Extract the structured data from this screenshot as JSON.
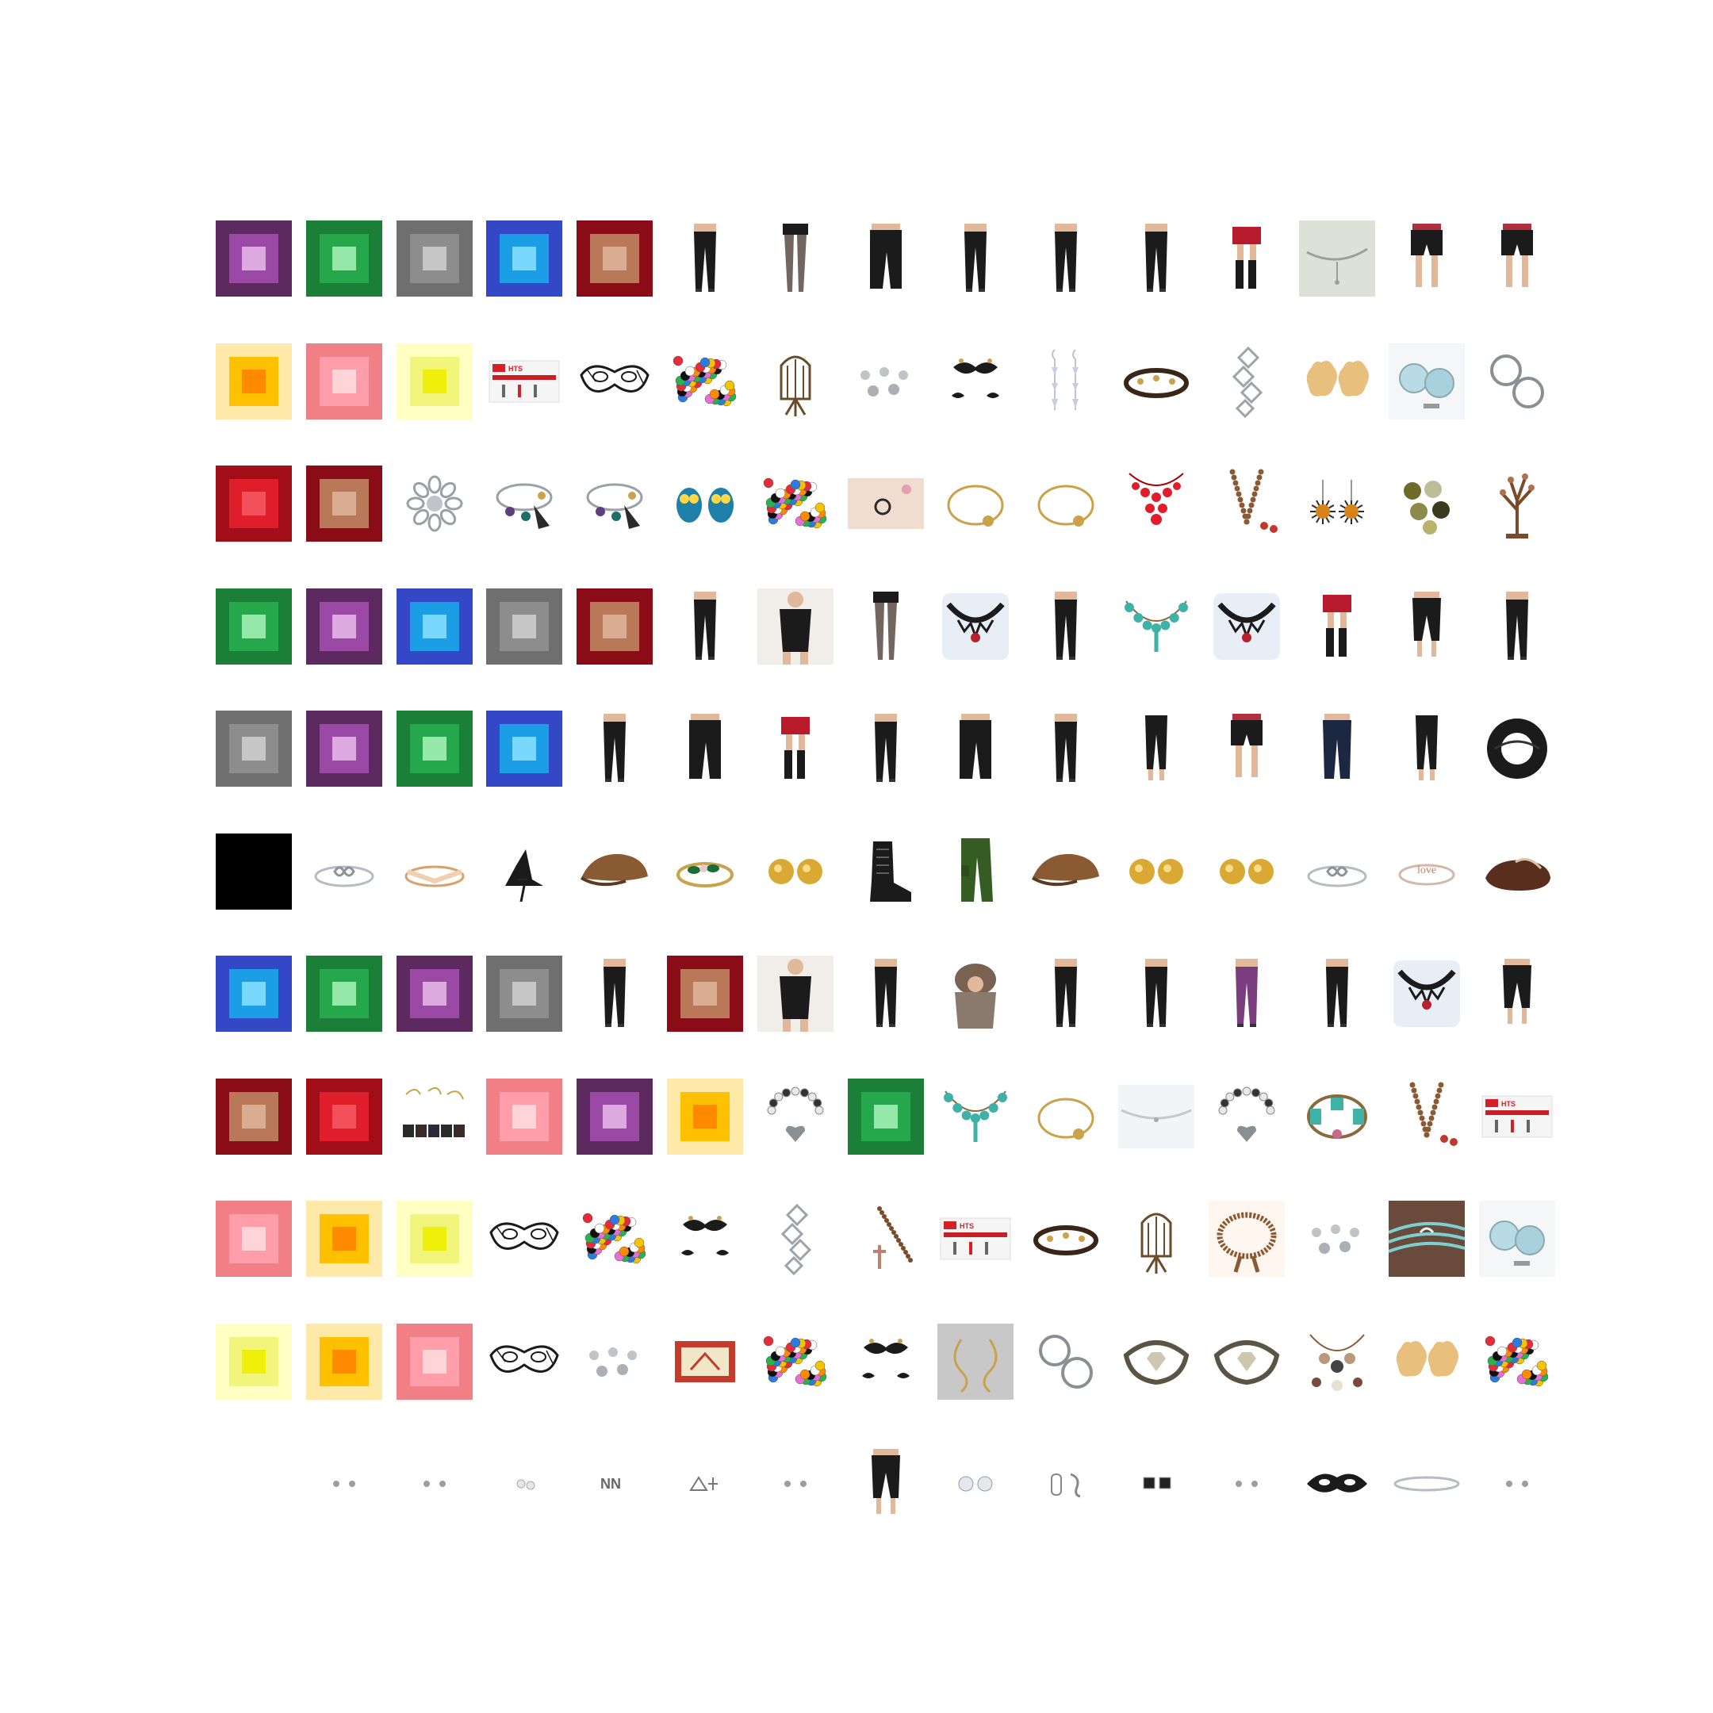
{
  "grid": {
    "rows": [
      [
        "swatch:#5d2a60:#9a4aa5:#dcaadf",
        "swatch:#1b7f38:#24a84b:#95e8a7",
        "swatch:#6f6f6f:#8d8d8d:#c6c6c6",
        "swatch:#3448c7:#1b9ee6:#7ad8ff",
        "swatch:#8a0c16:#b97959:#d9ad92",
        "leggings-icon",
        "stockings-icon",
        "pants-icon",
        "leggings-icon",
        "leggings-icon",
        "leggings-icon",
        "knee-socks-icon",
        "anklet-icon",
        "shorts-icon",
        "shorts-icon"
      ],
      [
        "swatch:#ffe9a8:#ffc000:#ff8a00",
        "swatch:#f07f86:#ff9eaa:#ffd4d6",
        "swatch:#ffffc4:#f2f57c:#f0ee0b",
        "watch-kit-icon",
        "lace-mask-icon",
        "beads-icon",
        "bird-cage-icon",
        "studs-icon",
        "mustache-icon",
        "drop-earrings-icon",
        "leather-bracelet-icon",
        "crystal-ear-cuff-icon",
        "pasties-icon",
        "gem-studs-icon",
        "hoop-earrings-icon"
      ],
      [
        "swatch:#a20e17:#e01d2b:#f2505a",
        "swatch:#8a0c16:#b97959:#d9ad92",
        "brooch-icon",
        "charm-bracelet-icon",
        "charm-bracelet-icon",
        "owl-earrings-icon",
        "beads-icon",
        "ring-photo-icon",
        "bangle-icon",
        "bangle-icon",
        "bib-necklace-icon",
        "bead-necklace-icon",
        "sun-earrings-icon",
        "buttons-icon",
        "jewelry-tree-icon"
      ],
      [
        "swatch:#1b7f38:#24a84b:#95e8a7",
        "swatch:#5d2a60:#9a4aa5:#dcaadf",
        "swatch:#3448c7:#1b9ee6:#7ad8ff",
        "swatch:#6f6f6f:#8d8d8d:#c6c6c6",
        "swatch:#8a0c16:#b97959:#d9ad92",
        "leggings-icon",
        "bodysuit-icon",
        "stockings-icon",
        "lace-choker-icon",
        "leggings-icon",
        "turquoise-necklace-icon",
        "lace-choker-icon",
        "knee-socks-icon",
        "capri-icon",
        "leggings-icon"
      ],
      [
        "swatch:#6f6f6f:#8d8d8d:#c6c6c6",
        "swatch:#5d2a60:#9a4aa5:#dcaadf",
        "swatch:#1b7f38:#24a84b:#95e8a7",
        "swatch:#3448c7:#1b9ee6:#7ad8ff",
        "leggings-icon",
        "pants-icon",
        "knee-socks-icon",
        "leggings-icon",
        "pants-icon",
        "leggings-icon",
        "footless-tights-icon",
        "shorts-icon",
        "jeans-icon",
        "footless-tights-icon",
        "infinity-scarf-icon"
      ],
      [
        "black-square",
        "infinity-ring-icon",
        "chevron-ring-icon",
        "witch-hat-icon",
        "flat-cap-icon",
        "leaf-ring-icon",
        "ball-studs-icon",
        "lace-boot-icon",
        "cargo-pants-icon",
        "flat-cap-icon",
        "ball-studs-icon",
        "ball-studs-icon",
        "infinity-ring-icon",
        "love-ring-icon",
        "moccasin-icon"
      ],
      [
        "swatch:#3448c7:#1b9ee6:#7ad8ff",
        "swatch:#1b7f38:#24a84b:#95e8a7",
        "swatch:#5d2a60:#9a4aa5:#dcaadf",
        "swatch:#6f6f6f:#8d8d8d:#c6c6c6",
        "leggings-icon",
        "swatch:#8a0c16:#b97959:#d9ad92",
        "bodysuit-icon",
        "leggings-icon",
        "fur-hat-icon",
        "leggings-icon",
        "leggings-icon",
        "purple-leggings-icon",
        "leggings-icon",
        "lace-choker-icon",
        "capri-icon"
      ],
      [
        "swatch:#8a0c16:#b97959:#d9ad92",
        "swatch:#a20e17:#e01d2b:#f2505a",
        "ear-cuff-set-icon",
        "swatch:#f07f86:#ff9eaa:#ffd4d6",
        "swatch:#5d2a60:#9a4aa5:#dcaadf",
        "swatch:#ffe9a8:#ffc000:#ff8a00",
        "heart-bracelet-icon",
        "swatch:#1b7f38:#24a84b:#95e8a7",
        "turquoise-necklace-icon",
        "bangle-icon",
        "chain-anklet-icon",
        "heart-bracelet-icon",
        "turquoise-bracelet-icon",
        "bead-necklace-icon",
        "watch-kit-icon"
      ],
      [
        "swatch:#f07f86:#ff9eaa:#ffd4d6",
        "swatch:#ffe9a8:#ffc000:#ff8a00",
        "swatch:#ffffc4:#f2f57c:#f0ee0b",
        "lace-mask-icon",
        "beads-icon",
        "mustache-icon",
        "crystal-ear-cuff-icon",
        "rosary-icon",
        "watch-kit-icon",
        "leather-bracelet-icon",
        "bird-cage-icon",
        "wood-beads-icon",
        "studs-icon",
        "wrap-bracelet-icon",
        "gem-studs-icon"
      ],
      [
        "swatch:#ffffc4:#f2f57c:#f0ee0b",
        "swatch:#ffe9a8:#ffc000:#ff8a00",
        "swatch:#f07f86:#ff9eaa:#ffd4d6",
        "lace-mask-icon",
        "studs-icon",
        "matchbox-icon",
        "beads-icon",
        "mustache-icon",
        "swirl-earrings-icon",
        "hoop-earrings-icon",
        "bull-cuff-icon",
        "bull-cuff-icon",
        "statement-necklace-icon",
        "pasties-icon",
        "beads-icon"
      ],
      [
        "blank",
        "tiny-studs-icon",
        "tiny-studs-icon",
        "tiny-pearl-icon",
        "tiny-letter-icon",
        "tiny-triangle-icon",
        "tiny-studs-icon",
        "capri-icon",
        "tiny-halo-icon",
        "tiny-cuff-icon",
        "tiny-square-icon",
        "tiny-studs-icon",
        "eye-mask-icon",
        "thin-bangle-icon",
        "tiny-studs-icon"
      ]
    ]
  }
}
